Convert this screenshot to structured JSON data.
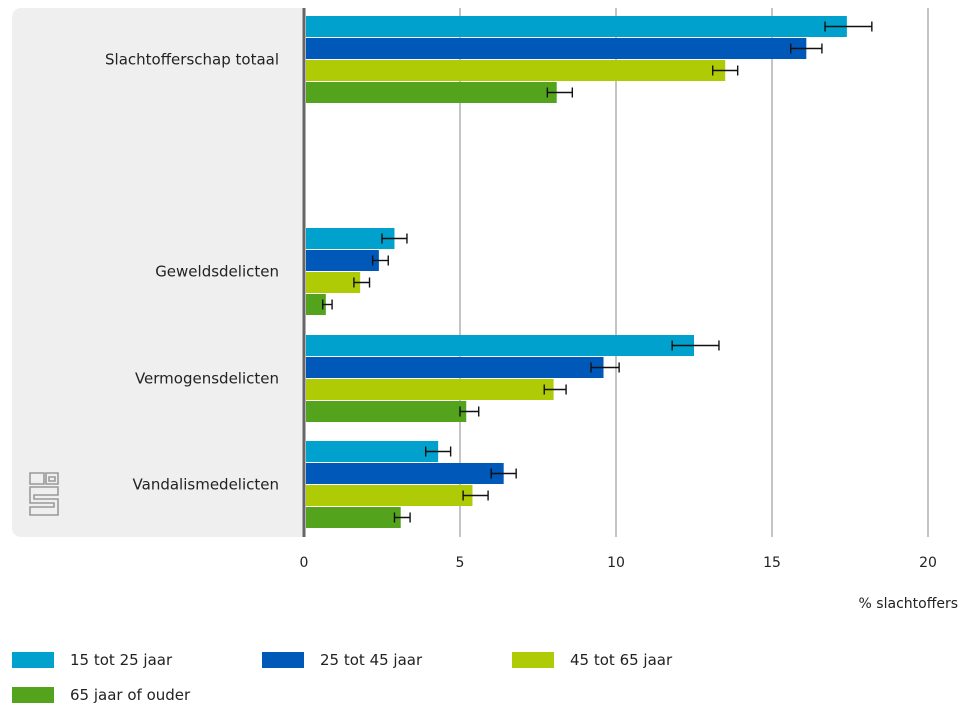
{
  "chart_data": {
    "type": "bar",
    "orientation": "horizontal",
    "categories": [
      "Slachtofferschap totaal",
      "Geweldsdelicten",
      "Vermogensdelicten",
      "Vandalismedelicten"
    ],
    "series": [
      {
        "name": "15 tot 25 jaar",
        "color": "#00a1cd",
        "values": [
          17.4,
          2.9,
          12.5,
          4.3
        ],
        "error_low": [
          16.7,
          2.5,
          11.8,
          3.9
        ],
        "error_high": [
          18.2,
          3.3,
          13.3,
          4.7
        ]
      },
      {
        "name": "25 tot 45 jaar",
        "color": "#0058b8",
        "values": [
          16.1,
          2.4,
          9.6,
          6.4
        ],
        "error_low": [
          15.6,
          2.2,
          9.2,
          6.0
        ],
        "error_high": [
          16.6,
          2.7,
          10.1,
          6.8
        ]
      },
      {
        "name": "45 tot 65 jaar",
        "color": "#afcb05",
        "values": [
          13.5,
          1.8,
          8.0,
          5.4
        ],
        "error_low": [
          13.1,
          1.6,
          7.7,
          5.1
        ],
        "error_high": [
          13.9,
          2.1,
          8.4,
          5.9
        ]
      },
      {
        "name": "65 jaar of ouder",
        "color": "#53a31d",
        "values": [
          8.1,
          0.7,
          5.2,
          3.1
        ],
        "error_low": [
          7.8,
          0.6,
          5.0,
          2.9
        ],
        "error_high": [
          8.6,
          0.9,
          5.6,
          3.4
        ]
      }
    ],
    "xticks": [
      0,
      5,
      10,
      15,
      20
    ],
    "xlim": [
      0,
      20
    ],
    "xlabel": "% slachtoffers",
    "grid": true,
    "legend_position": "bottom"
  }
}
